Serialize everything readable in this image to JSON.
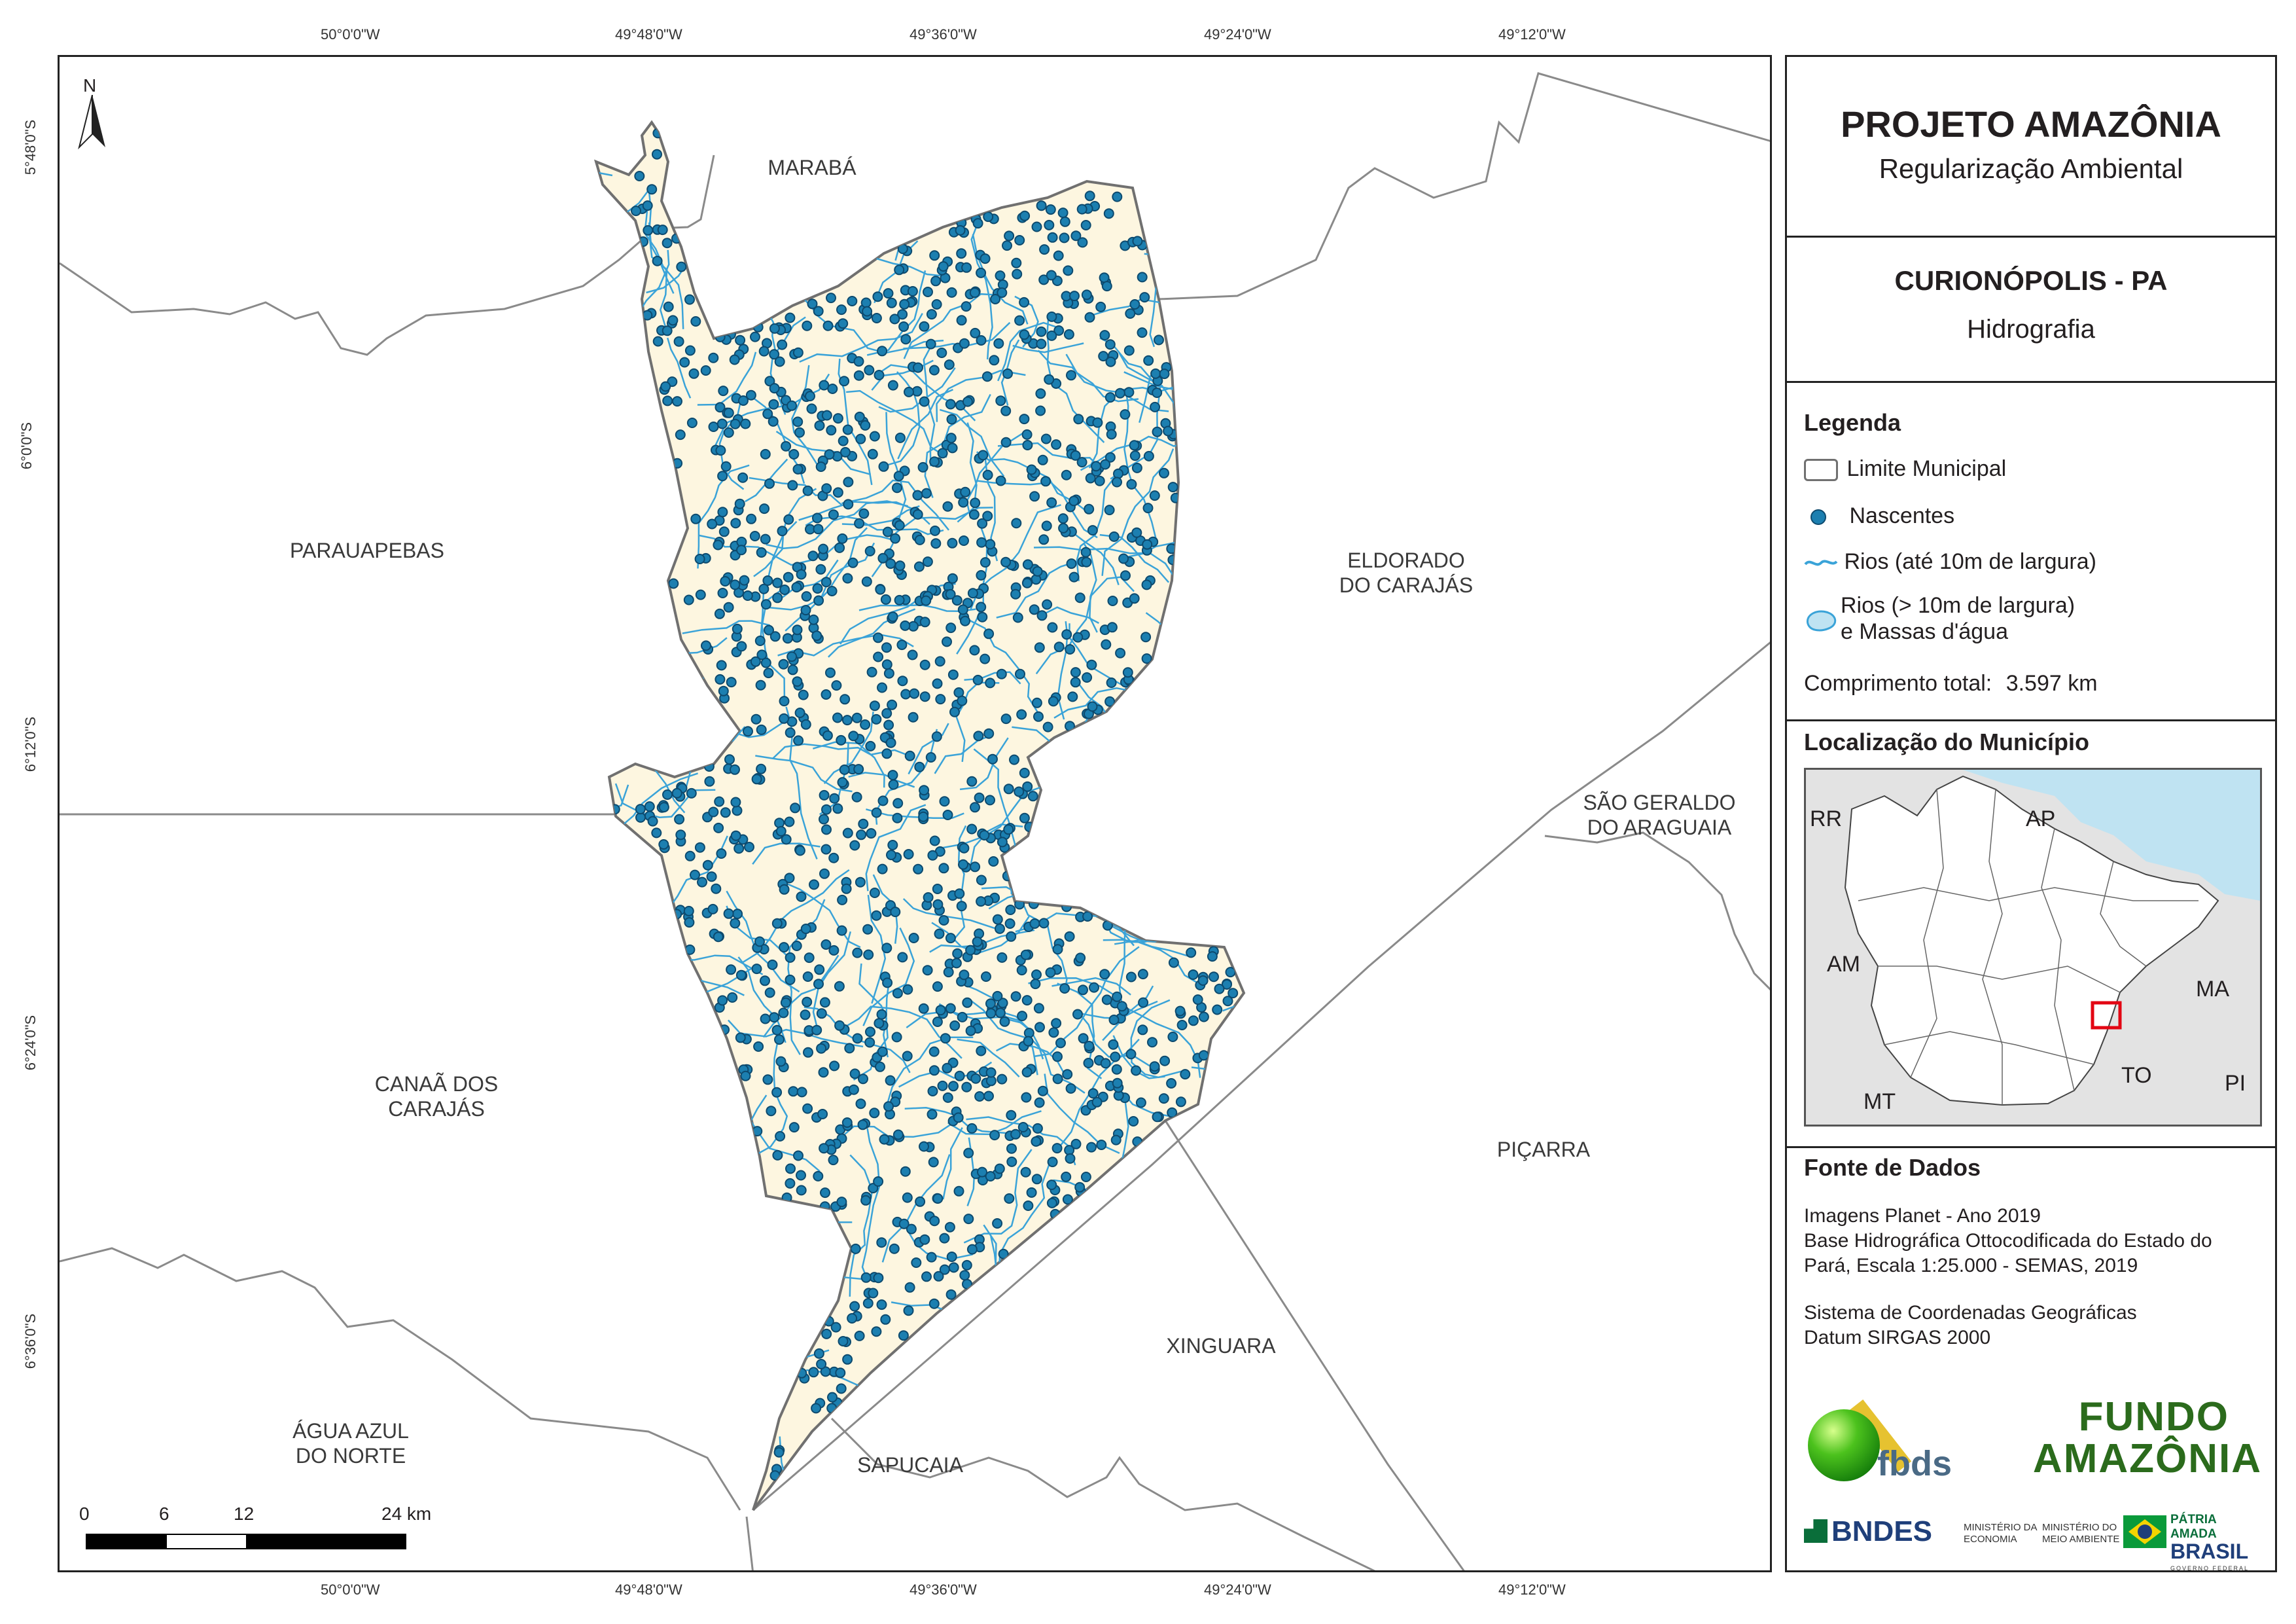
{
  "coords": {
    "top": [
      "50°0'0\"W",
      "49°48'0\"W",
      "49°36'0\"W",
      "49°24'0\"W",
      "49°12'0\"W"
    ],
    "bottom": [
      "50°0'0\"W",
      "49°48'0\"W",
      "49°36'0\"W",
      "49°24'0\"W",
      "49°12'0\"W"
    ],
    "left": [
      "5°48'0\"S",
      "6°0'0\"S",
      "6°12'0\"S",
      "6°24'0\"S",
      "6°36'0\"S"
    ]
  },
  "north": "N",
  "neighbors": {
    "maraba": "MARABÁ",
    "parauapebas": "PARAUAPEBAS",
    "eldorado": [
      "ELDORADO",
      "DO CARAJÁS"
    ],
    "sao_geraldo": [
      "SÃO GERALDO",
      "DO ARAGUAIA"
    ],
    "canaa": [
      "CANAÃ DOS",
      "CARAJÁS"
    ],
    "picarra": "PIÇARRA",
    "xinguara": "XINGUARA",
    "agua_azul": [
      "ÁGUA AZUL",
      "DO NORTE"
    ],
    "sapucaia": "SAPUCAIA"
  },
  "scalebar": {
    "ticks": [
      "0",
      "6",
      "12",
      "24 km"
    ]
  },
  "panel": {
    "title": "PROJETO AMAZÔNIA",
    "subtitle": "Regularização Ambiental",
    "municipio": "CURIONÓPOLIS - PA",
    "tema": "Hidrografia",
    "legend_title": "Legenda",
    "legend": {
      "limite": "Limite Municipal",
      "nascentes": "Nascentes",
      "rios_small": "Rios (até 10m de largura)",
      "rios_big_1": "Rios (> 10m de largura)",
      "rios_big_2": "e Massas d'água"
    },
    "comprimento_label": "Comprimento total:",
    "comprimento_value": "3.597 km",
    "location_title": "Localização do Município",
    "states": {
      "rr": "RR",
      "ap": "AP",
      "am": "AM",
      "ma": "MA",
      "to": "TO",
      "mt": "MT",
      "pi": "PI"
    },
    "fonte_title": "Fonte de Dados",
    "fonte_lines": [
      "Imagens Planet - Ano 2019",
      "Base Hidrográfica Ottocodificada do Estado do",
      "Pará, Escala 1:25.000 - SEMAS, 2019"
    ],
    "sistema_lines": [
      "Sistema de Coordenadas Geográficas",
      "Datum SIRGAS 2000"
    ],
    "logos": {
      "fbds": "fbds",
      "fundo_1": "FUNDO",
      "fundo_2": "AMAZÔNIA",
      "bndes": "BNDES",
      "min_eco_1": "MINISTÉRIO DA",
      "min_eco_2": "ECONOMIA",
      "min_ma_1": "MINISTÉRIO DO",
      "min_ma_2": "MEIO AMBIENTE",
      "patria_1": "PÁTRIA AMADA",
      "patria_2": "BRASIL",
      "patria_3": "GOVERNO FEDERAL"
    }
  },
  "colors": {
    "municipio_fill": "#fdf6e0",
    "river": "#3aa3d8",
    "spring_fill": "#1c7fb0",
    "spring_stroke": "#0d4a6e",
    "water_body": "#bfe3f2",
    "boundary": "#808080",
    "scale_red": "#e30613"
  }
}
